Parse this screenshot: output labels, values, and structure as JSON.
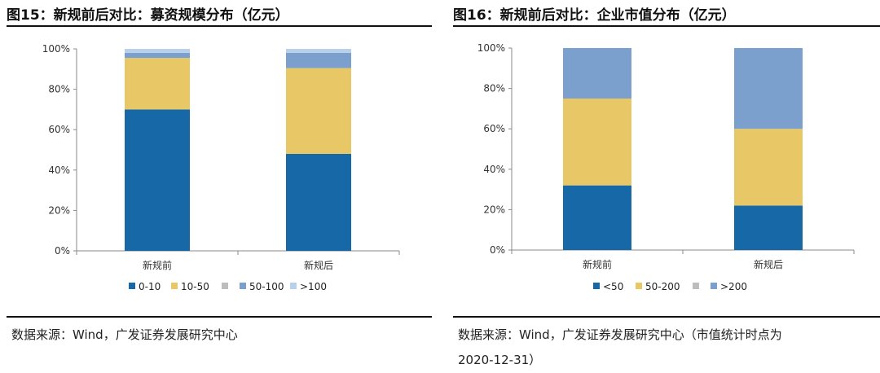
{
  "panels": [
    {
      "figure_title": "图15：新规前后对比：募资规模分布（亿元）",
      "source": "数据来源：Wind，广发证券发展研究中心",
      "source_line2": ""
    },
    {
      "figure_title": "图16：新规前后对比：企业市值分布（亿元）",
      "source": "数据来源：Wind，广发证券发展研究中心（市值统计时点为",
      "source_line2": "2020-12-31）"
    }
  ],
  "chart_data": [
    {
      "type": "bar",
      "stacked": true,
      "normalized": true,
      "title": "",
      "xlabel": "",
      "ylabel": "",
      "ylim": [
        0,
        100
      ],
      "yticks": [
        "0%",
        "20%",
        "40%",
        "60%",
        "80%",
        "100%"
      ],
      "categories": [
        "新规前",
        "新规后"
      ],
      "legend_position": "bottom",
      "grid": false,
      "series": [
        {
          "name": "0-10",
          "color": "#1669a6",
          "values": [
            70,
            48
          ]
        },
        {
          "name": "10-50",
          "color": "#e8c766",
          "values": [
            25.5,
            42.5
          ]
        },
        {
          "name": "",
          "color": "#bdbdbd",
          "values": [
            0,
            0
          ]
        },
        {
          "name": "50-100",
          "color": "#7ba0cd",
          "values": [
            2.5,
            7.5
          ]
        },
        {
          "name": ">100",
          "color": "#b9d0ea",
          "values": [
            2,
            2
          ]
        }
      ]
    },
    {
      "type": "bar",
      "stacked": true,
      "normalized": true,
      "title": "",
      "xlabel": "",
      "ylabel": "",
      "ylim": [
        0,
        100
      ],
      "yticks": [
        "0%",
        "20%",
        "40%",
        "60%",
        "80%",
        "100%"
      ],
      "categories": [
        "新规前",
        "新规后"
      ],
      "legend_position": "bottom",
      "grid": false,
      "series": [
        {
          "name": "<50",
          "color": "#1669a6",
          "values": [
            32,
            22
          ]
        },
        {
          "name": "50-200",
          "color": "#e8c766",
          "values": [
            43,
            38
          ]
        },
        {
          "name": "",
          "color": "#bdbdbd",
          "values": [
            0,
            0
          ]
        },
        {
          "name": ">200",
          "color": "#7ba0cd",
          "values": [
            25,
            40
          ]
        }
      ]
    }
  ]
}
